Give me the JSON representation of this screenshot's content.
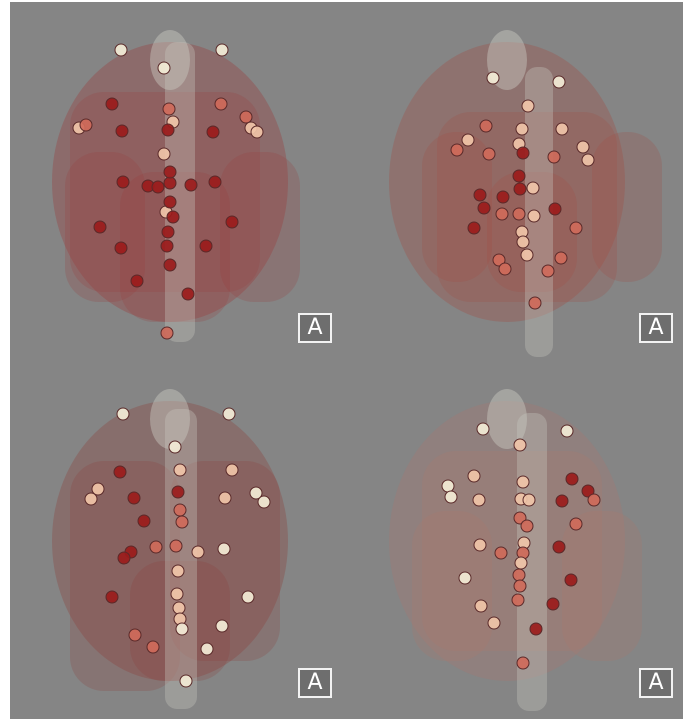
{
  "colors": {
    "background": "#858585",
    "shell": "#c9c9c0",
    "node_dark": "#9b1b1b",
    "node_mid": "#cf6a5a",
    "node_light": "#f0c4a8",
    "node_pale": "#f3ecd6"
  },
  "panels": [
    {
      "id": "top-left",
      "orientation_label": "A"
    },
    {
      "id": "top-right",
      "orientation_label": "A"
    },
    {
      "id": "bottom-left",
      "orientation_label": "A"
    },
    {
      "id": "bottom-right",
      "orientation_label": "A"
    }
  ]
}
